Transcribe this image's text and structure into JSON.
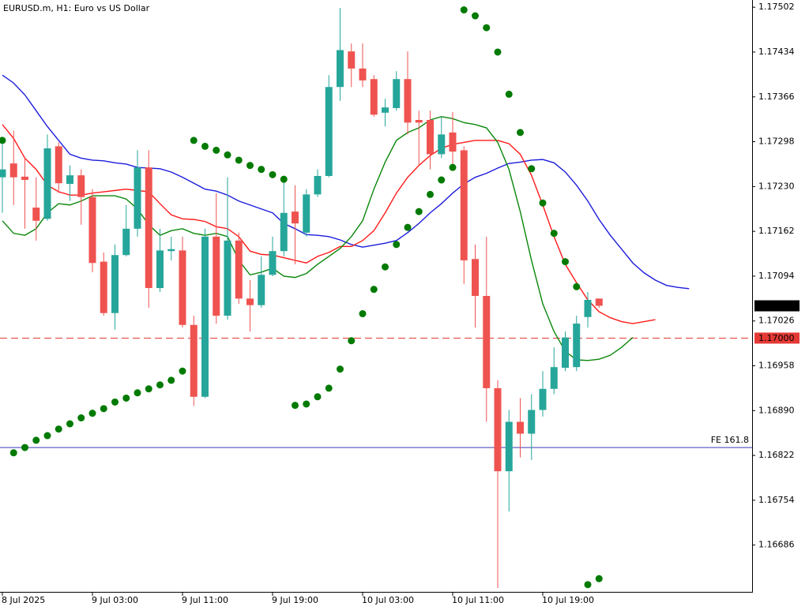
{
  "chart_data": {
    "type": "candlestick",
    "title": "EURUSD.m, H1:  Euro vs US Dollar",
    "categories": [
      "8 Jul 2025",
      null,
      null,
      null,
      null,
      null,
      null,
      null,
      "9 Jul 03:00",
      null,
      null,
      null,
      null,
      null,
      null,
      null,
      "9 Jul 11:00",
      null,
      null,
      null,
      null,
      null,
      null,
      null,
      "9 Jul 19:00",
      null,
      null,
      null,
      null,
      null,
      null,
      null,
      "10 Jul 03:00",
      null,
      null,
      null,
      null,
      null,
      null,
      null,
      "10 Jul 11:00",
      null,
      null,
      null,
      null,
      null,
      null,
      null,
      "10 Jul 19:00",
      null,
      null,
      null,
      null,
      null,
      null,
      null,
      null,
      null,
      null,
      null,
      null,
      null
    ],
    "open": [
      1.17244,
      1.17265,
      1.17245,
      1.17198,
      1.17181,
      1.17291,
      1.17234,
      1.17247,
      1.17214,
      1.17116,
      1.17038,
      1.17126,
      1.17166,
      1.17259,
      1.17076,
      1.17132,
      1.17133,
      1.1702,
      1.16911,
      1.17154,
      1.17034,
      1.17148,
      1.1706,
      1.1705,
      1.17096,
      1.17132,
      1.17192,
      1.1716,
      1.17218,
      1.17246,
      1.17381,
      1.17435,
      1.17409,
      1.17393,
      1.17342,
      1.17349,
      1.17393,
      1.17331,
      1.17331,
      1.17279,
      1.17312,
      1.17285,
      1.1712,
      1.17064,
      1.16924,
      1.16798,
      1.16873,
      1.16855,
      1.16891,
      1.16923,
      1.16955,
      1.16956,
      1.17032,
      1.1706,
      null,
      null,
      null,
      null,
      null,
      null,
      null,
      null
    ],
    "high": [
      1.17303,
      1.17315,
      1.17273,
      1.17244,
      1.17309,
      1.17297,
      1.17262,
      1.17256,
      1.17226,
      1.1713,
      1.17142,
      1.17202,
      1.17285,
      1.17285,
      1.17166,
      1.17154,
      1.17154,
      1.17034,
      1.17166,
      1.1722,
      1.17244,
      1.1716,
      1.17088,
      1.17124,
      1.17154,
      1.17238,
      1.17232,
      1.17226,
      1.17256,
      1.17399,
      1.17501,
      1.17447,
      1.17447,
      1.17399,
      1.17363,
      1.17405,
      1.17435,
      1.17345,
      1.17345,
      1.17336,
      1.17343,
      1.17291,
      1.17142,
      1.17154,
      1.16936,
      1.16891,
      1.16909,
      1.16915,
      1.1695,
      1.16986,
      1.1701,
      1.17034,
      1.1707,
      1.1706,
      null,
      null,
      null,
      null,
      null,
      null,
      null,
      null
    ],
    "low": [
      1.1719,
      1.17202,
      1.17166,
      1.17148,
      1.17178,
      1.1722,
      1.17208,
      1.17172,
      1.171,
      1.17034,
      1.17013,
      1.17124,
      1.17154,
      1.17046,
      1.1707,
      1.17118,
      1.17016,
      1.16897,
      1.16909,
      1.17022,
      1.17028,
      1.17052,
      1.1701,
      1.17046,
      1.17094,
      1.17124,
      1.17112,
      1.17154,
      1.17214,
      1.17244,
      1.1736,
      1.17381,
      1.17381,
      1.17336,
      1.17321,
      1.17345,
      1.17309,
      1.17262,
      1.17256,
      1.17273,
      1.17262,
      1.17082,
      1.17016,
      1.16873,
      1.16621,
      1.16737,
      1.16819,
      1.16815,
      1.16881,
      1.16915,
      1.1695,
      1.1695,
      1.17016,
      1.17046,
      null,
      null,
      null,
      null,
      null,
      null,
      null,
      null
    ],
    "close": [
      1.17256,
      1.17244,
      1.1724,
      1.17178,
      1.17288,
      1.17235,
      1.17247,
      1.17214,
      1.17114,
      1.17038,
      1.17126,
      1.17166,
      1.17259,
      1.17076,
      1.17133,
      1.17135,
      1.1702,
      1.16911,
      1.17154,
      1.17034,
      1.17148,
      1.1706,
      1.1705,
      1.17096,
      1.17132,
      1.1719,
      1.17174,
      1.17218,
      1.17246,
      1.17381,
      1.17437,
      1.17409,
      1.17391,
      1.17339,
      1.1735,
      1.17393,
      1.17327,
      1.17327,
      1.17279,
      1.17309,
      1.17283,
      1.17118,
      1.17064,
      1.16924,
      1.16798,
      1.16873,
      1.16855,
      1.16891,
      1.16923,
      1.16956,
      1.17001,
      1.17022,
      1.17058,
      1.17049,
      null,
      null,
      null,
      null,
      null,
      null,
      null,
      null
    ],
    "up_color": "#26a69a",
    "down_color": "#ef5350",
    "indicators": [
      {
        "color": "#1c1cdc",
        "values": [
          1.17399,
          1.17387,
          1.17369,
          1.17345,
          1.17321,
          1.173,
          1.17279,
          1.17273,
          1.1727,
          1.17269,
          1.17266,
          1.17264,
          1.17259,
          1.17258,
          1.17257,
          1.17252,
          1.17244,
          1.17235,
          1.17226,
          1.17223,
          1.17217,
          1.17208,
          1.17202,
          1.17196,
          1.1719,
          1.17174,
          1.17166,
          1.17157,
          1.17156,
          1.17154,
          1.17149,
          1.17142,
          1.17138,
          1.17141,
          1.17144,
          1.17148,
          1.1716,
          1.17174,
          1.1719,
          1.17204,
          1.1722,
          1.17234,
          1.17244,
          1.1725,
          1.17258,
          1.17265,
          1.17267,
          1.1727,
          1.17271,
          1.17266,
          1.17252,
          1.17232,
          1.17208,
          1.1718,
          1.17156,
          1.17135,
          1.17114,
          1.17099,
          1.17088,
          1.1708,
          1.17077,
          1.17075
        ]
      },
      {
        "color": "#ff1a1a",
        "values": [
          1.17324,
          1.17303,
          1.17273,
          1.17256,
          1.17232,
          1.17222,
          1.17217,
          1.17217,
          1.1722,
          1.17222,
          1.17224,
          1.17226,
          1.17224,
          1.17222,
          1.17204,
          1.17187,
          1.17181,
          1.1718,
          1.17177,
          1.17169,
          1.17166,
          1.17154,
          1.17132,
          1.17127,
          1.17126,
          1.17122,
          1.17118,
          1.17114,
          1.17124,
          1.1713,
          1.17139,
          1.17139,
          1.17148,
          1.17163,
          1.1719,
          1.1722,
          1.17244,
          1.17262,
          1.17277,
          1.17288,
          1.17294,
          1.17297,
          1.173,
          1.173,
          1.173,
          1.17295,
          1.17279,
          1.17247,
          1.17202,
          1.17154,
          1.17112,
          1.17084,
          1.17058,
          1.1704,
          1.17031,
          1.17025,
          1.17022,
          1.17025,
          1.17028,
          null,
          null,
          null
        ]
      },
      {
        "color": "#0a870a",
        "values": [
          1.17178,
          1.17159,
          1.17156,
          1.17166,
          1.1719,
          1.17204,
          1.17202,
          1.17208,
          1.17216,
          1.17216,
          1.17216,
          1.17211,
          1.17196,
          1.17172,
          1.17156,
          1.17163,
          1.17166,
          1.17159,
          1.17156,
          1.17159,
          1.17154,
          1.17118,
          1.17096,
          1.171,
          1.17106,
          1.17094,
          1.17092,
          1.17098,
          1.17112,
          1.17124,
          1.17136,
          1.17154,
          1.17178,
          1.17226,
          1.17267,
          1.173,
          1.17312,
          1.17319,
          1.17331,
          1.17336,
          1.17333,
          1.17327,
          1.17324,
          1.17319,
          1.17297,
          1.17256,
          1.17192,
          1.17118,
          1.17052,
          1.1701,
          1.1698,
          1.16967,
          1.16966,
          1.16968,
          1.16974,
          1.16986,
          1.17001,
          null,
          null,
          null,
          null,
          null
        ]
      }
    ],
    "sar": {
      "color": "#007a00",
      "values": [
        1.173,
        1.16826,
        1.16834,
        1.16845,
        1.16852,
        1.16862,
        1.1687,
        1.16879,
        1.16886,
        1.16893,
        1.16903,
        1.16909,
        1.16917,
        1.16923,
        1.16929,
        1.16936,
        1.1695,
        1.173,
        1.17291,
        1.17285,
        1.17278,
        1.1727,
        1.17262,
        1.17256,
        1.17248,
        1.17241,
        1.16898,
        1.169,
        1.16911,
        1.16924,
        1.16953,
        1.16996,
        1.17037,
        1.17074,
        1.17108,
        1.17142,
        1.17168,
        1.17192,
        1.17218,
        1.1724,
        1.17259,
        1.17498,
        1.17489,
        1.17471,
        1.17434,
        1.1737,
        1.17312,
        1.17257,
        1.17205,
        1.17159,
        1.17116,
        1.17078,
        1.16626,
        1.16635,
        null,
        null,
        null,
        null,
        null,
        null,
        null,
        null
      ]
    },
    "ylim": [
      1.16615,
      1.17513
    ],
    "yticks": [
      1.17502,
      1.17434,
      1.17366,
      1.17298,
      {
        "value": 1.1723,
        "label": "1.17230"
      },
      1.17162,
      1.17094,
      1.17026,
      1.16958,
      {
        "value": 1.1689,
        "label": "1.16890"
      },
      1.16822,
      1.16754,
      1.16686
    ],
    "price_level": {
      "value": 1.17,
      "label": "1.17000",
      "color": "#e53935",
      "style": "dashed"
    },
    "fib_level": {
      "value": 1.16834,
      "text": "FE 161.8",
      "color": "#3a3ab8"
    },
    "last_price": {
      "value": 1.17049,
      "color": "#000000"
    }
  }
}
